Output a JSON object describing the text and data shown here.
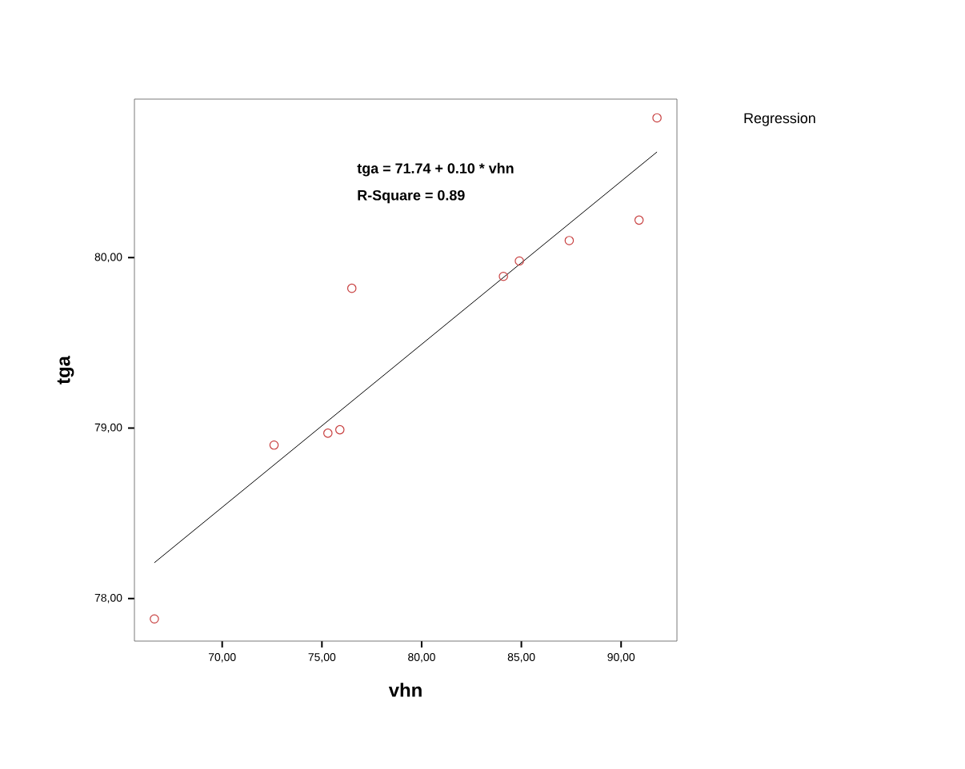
{
  "chart_data": {
    "type": "scatter",
    "xlabel": "vhn",
    "ylabel": "tga",
    "xlim": [
      65.6,
      92.8
    ],
    "ylim": [
      77.75,
      80.93
    ],
    "xticks": [
      {
        "value": 70,
        "label": "70,00"
      },
      {
        "value": 75,
        "label": "75,00"
      },
      {
        "value": 80,
        "label": "80,00"
      },
      {
        "value": 85,
        "label": "85,00"
      },
      {
        "value": 90,
        "label": "90,00"
      }
    ],
    "yticks": [
      {
        "value": 78,
        "label": "78,00"
      },
      {
        "value": 79,
        "label": "79,00"
      },
      {
        "value": 80,
        "label": "80,00"
      }
    ],
    "series": [
      {
        "marker": "circle",
        "color": "#c84040",
        "x": [
          66.6,
          72.6,
          75.3,
          75.9,
          76.5,
          84.1,
          84.9,
          87.4,
          90.9,
          91.8
        ],
        "values": [
          77.88,
          78.9,
          78.97,
          78.99,
          79.82,
          79.89,
          79.98,
          80.1,
          80.22,
          80.82
        ]
      },
      {
        "type": "line",
        "marker": "none",
        "color": "#000000",
        "x": [
          66.6,
          91.8
        ],
        "values": [
          78.21,
          80.62
        ]
      }
    ],
    "annotations": [
      "tga = 71.74 + 0.10 * vhn",
      "R-Square = 0.89",
      "Regression"
    ]
  }
}
